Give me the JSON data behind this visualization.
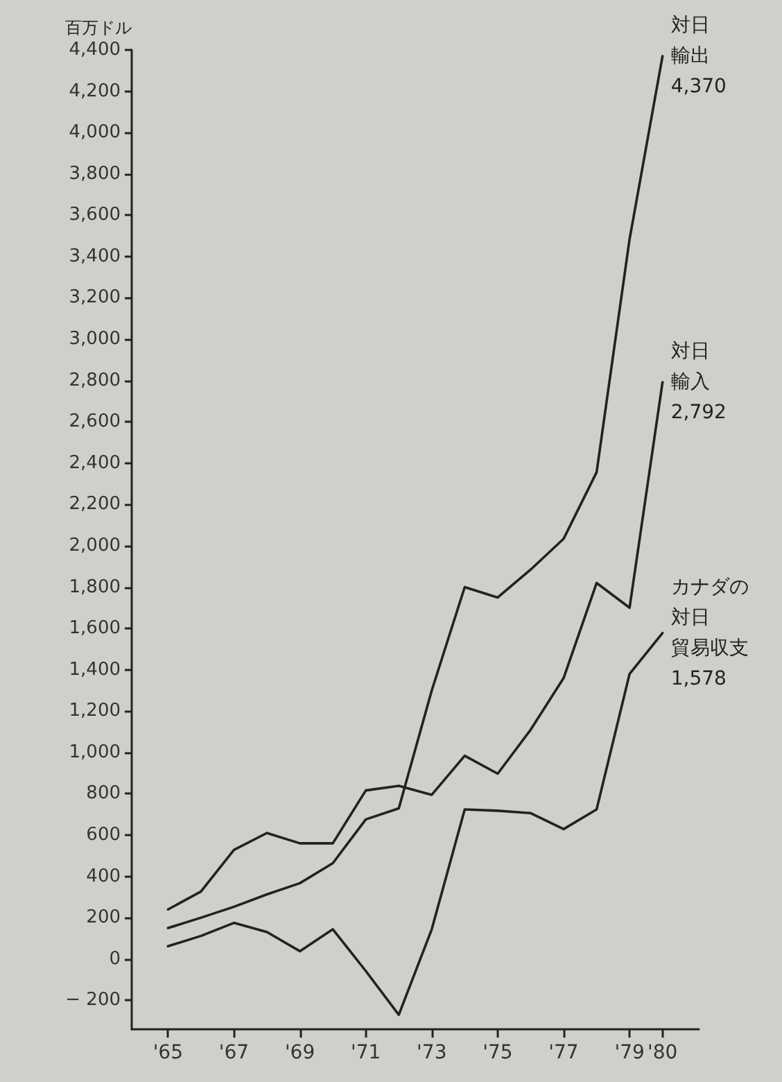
{
  "chart_data": {
    "type": "line",
    "ylabel": "百万ドル",
    "x": [
      1965,
      1966,
      1967,
      1968,
      1969,
      1970,
      1971,
      1972,
      1973,
      1974,
      1975,
      1976,
      1977,
      1978,
      1979,
      1980
    ],
    "series": [
      {
        "name": "対日輸出",
        "color": "#222222",
        "values": [
          150,
          200,
          253,
          313,
          367,
          464,
          676,
          729,
          1300,
          1800,
          1750,
          1885,
          2034,
          2356,
          3484,
          4370
        ],
        "value_labels": [
          null,
          null,
          null,
          null,
          null,
          null,
          null,
          null,
          null,
          null,
          null,
          null,
          null,
          null,
          null,
          "4,370"
        ]
      },
      {
        "name": "対日輸入",
        "color": "#222222",
        "values": [
          240,
          327,
          528,
          610,
          560,
          560,
          816,
          838,
          795,
          984,
          897,
          1110,
          1360,
          1820,
          1700,
          2792
        ],
        "value_labels": [
          null,
          null,
          null,
          null,
          null,
          null,
          null,
          null,
          null,
          null,
          null,
          null,
          null,
          null,
          null,
          "2,792"
        ]
      },
      {
        "name": "カナダの対日貿易収支",
        "color": "#222222",
        "values": [
          62,
          112,
          175,
          131,
          38,
          144,
          -58,
          -270,
          144,
          724,
          718,
          706,
          629,
          724,
          1380,
          1578
        ],
        "value_labels": [
          null,
          null,
          null,
          null,
          null,
          null,
          null,
          null,
          null,
          null,
          null,
          null,
          null,
          null,
          null,
          "1,578"
        ]
      }
    ],
    "xlim": [
      1963.9,
      1981.1
    ],
    "xticks": [
      {
        "value": 1965,
        "label": "'65"
      },
      {
        "value": 1967,
        "label": "'67"
      },
      {
        "value": 1969,
        "label": "'69"
      },
      {
        "value": 1971,
        "label": "'71"
      },
      {
        "value": 1973,
        "label": "'73"
      },
      {
        "value": 1975,
        "label": "'75"
      },
      {
        "value": 1977,
        "label": "'77"
      },
      {
        "value": 1979,
        "label": "'79"
      },
      {
        "value": 1980,
        "label": "'80"
      }
    ],
    "ylim": [
      -340,
      4400
    ],
    "yticks": [
      {
        "value": -200,
        "label": "− 200"
      },
      0,
      200,
      400,
      600,
      800,
      {
        "value": 1000,
        "label": "1,000"
      },
      {
        "value": 1200,
        "label": "1,200"
      },
      {
        "value": 1400,
        "label": "1,400"
      },
      {
        "value": 1600,
        "label": "1,600"
      },
      {
        "value": 1800,
        "label": "1,800"
      },
      {
        "value": 2000,
        "label": "2,000"
      },
      {
        "value": 2200,
        "label": "2,200"
      },
      {
        "value": 2400,
        "label": "2,400"
      },
      {
        "value": 2600,
        "label": "2,600"
      },
      {
        "value": 2800,
        "label": "2,800"
      },
      {
        "value": 3000,
        "label": "3,000"
      },
      {
        "value": 3200,
        "label": "3,200"
      },
      {
        "value": 3400,
        "label": "3,400"
      },
      {
        "value": 3600,
        "label": "3,600"
      },
      {
        "value": 3800,
        "label": "3,800"
      },
      {
        "value": 4000,
        "label": "4,000"
      },
      {
        "value": 4200,
        "label": "4,200"
      },
      {
        "value": 4400,
        "label": "4,400"
      }
    ],
    "grid": false,
    "legend": false,
    "marker": "none",
    "line_style": "solid"
  }
}
